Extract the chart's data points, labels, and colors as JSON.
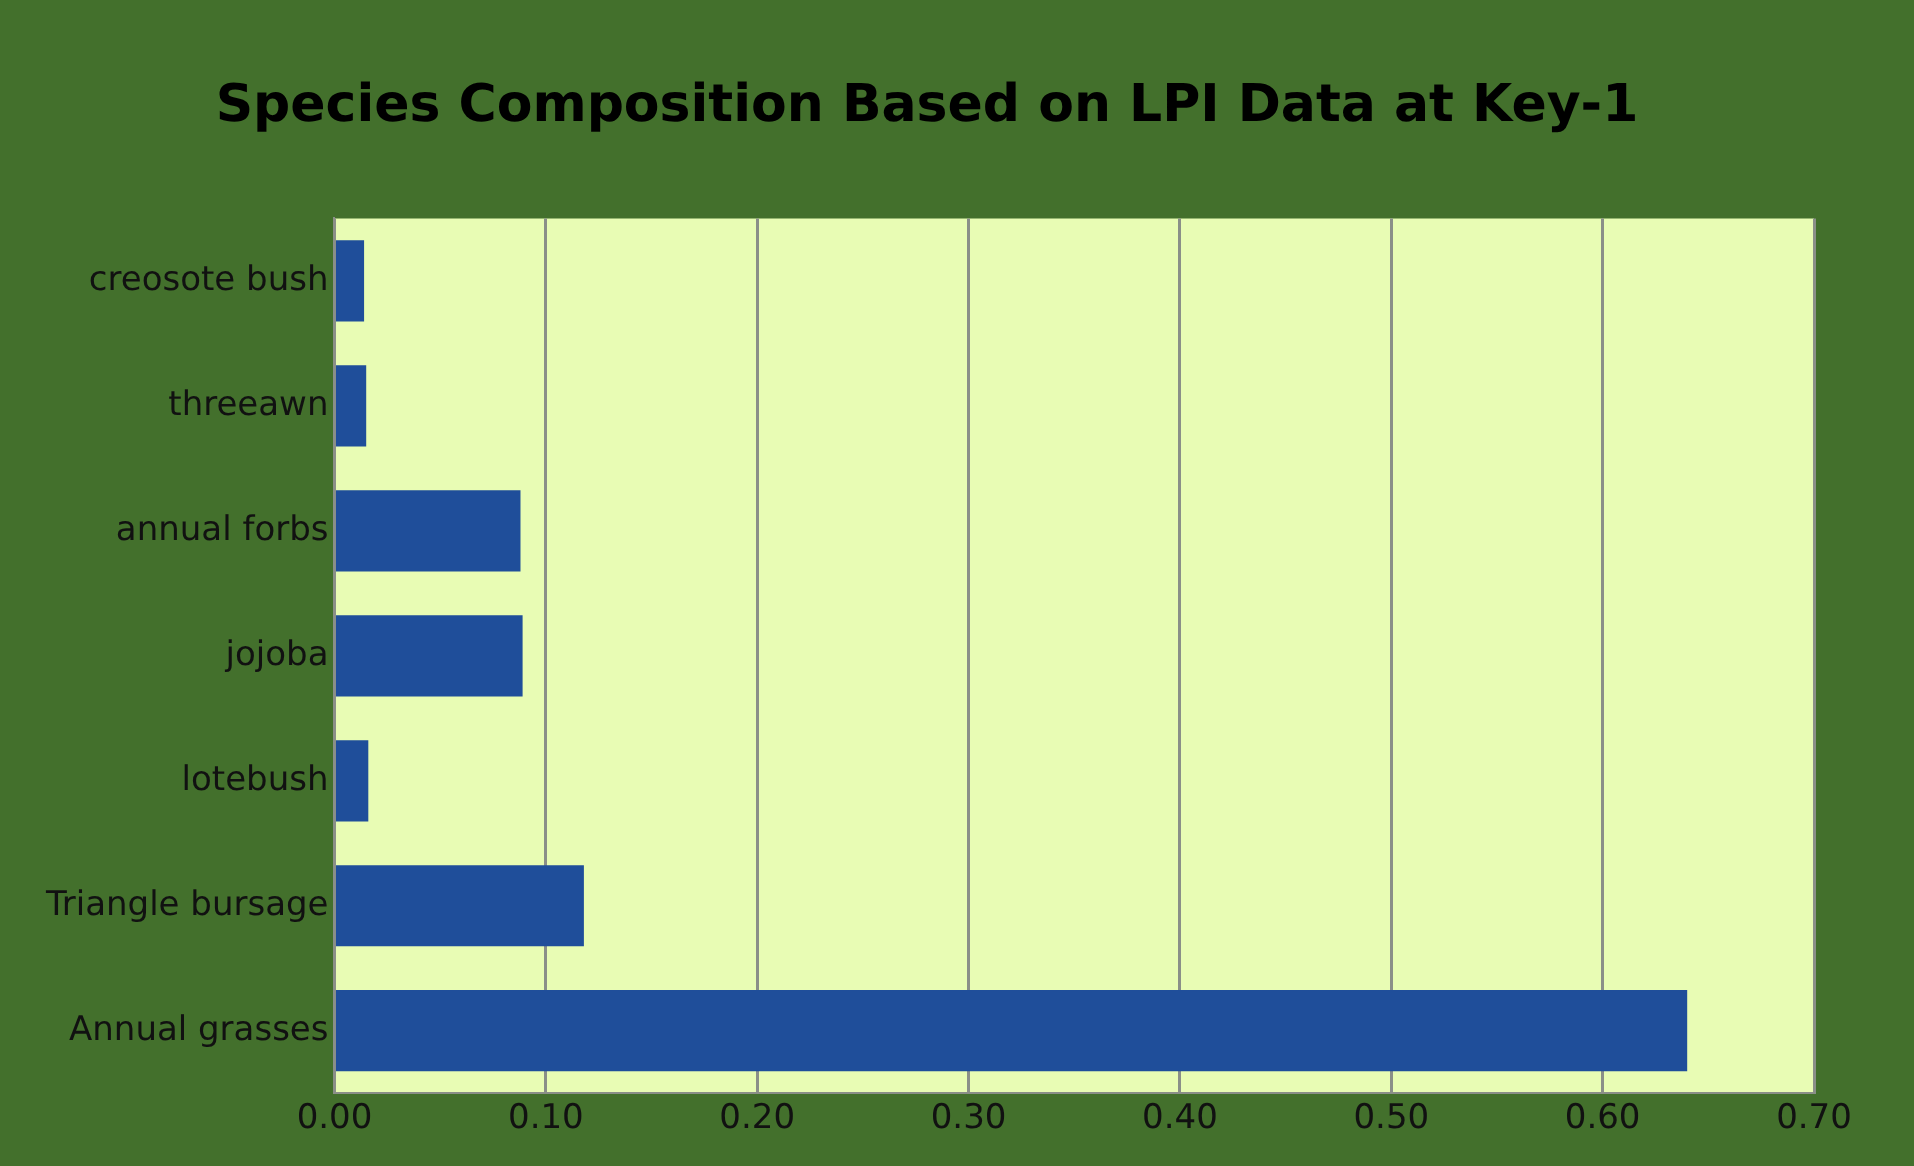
{
  "chart_data": {
    "type": "bar",
    "orientation": "horizontal",
    "title": "Species Composition Based on LPI Data at Key-1",
    "categories": [
      "creosote bush",
      "threeawn",
      "annual forbs",
      "jojoba",
      "lotebush",
      "Triangle bursage",
      "Annual grasses"
    ],
    "values": [
      0.014,
      0.015,
      0.088,
      0.089,
      0.016,
      0.118,
      0.64
    ],
    "color": "#1f4e9a",
    "xlim": [
      0,
      0.7
    ],
    "xticks": [
      {
        "value": 0,
        "label": "0.00"
      },
      {
        "value": 0.1,
        "label": "0.10"
      },
      {
        "value": 0.2,
        "label": "0.20"
      },
      {
        "value": 0.3,
        "label": "0.30"
      },
      {
        "value": 0.4,
        "label": "0.40"
      },
      {
        "value": 0.5,
        "label": "0.50"
      },
      {
        "value": 0.6,
        "label": "0.60"
      },
      {
        "value": 0.7,
        "label": "0.70"
      }
    ],
    "grid": "x",
    "legend": false
  }
}
